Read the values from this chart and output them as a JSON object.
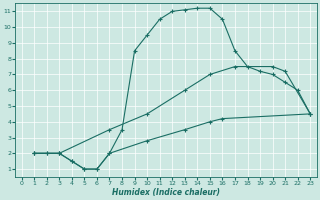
{
  "xlabel": "Humidex (Indice chaleur)",
  "bg_color": "#cde8e2",
  "line_color": "#1a6e64",
  "grid_color": "#b0d8d0",
  "xlim": [
    -0.5,
    23.5
  ],
  "ylim": [
    0.5,
    11.5
  ],
  "xticks": [
    0,
    1,
    2,
    3,
    4,
    5,
    6,
    7,
    8,
    9,
    10,
    11,
    12,
    13,
    14,
    15,
    16,
    17,
    18,
    19,
    20,
    21,
    22,
    23
  ],
  "yticks": [
    1,
    2,
    3,
    4,
    5,
    6,
    7,
    8,
    9,
    10,
    11
  ],
  "curve1_x": [
    1,
    2,
    3,
    4,
    5,
    6,
    7,
    8,
    9,
    10,
    11,
    12,
    13,
    14,
    15,
    16,
    17,
    18,
    19,
    20,
    21,
    22,
    23
  ],
  "curve1_y": [
    2,
    2,
    2,
    1.5,
    1.0,
    1.0,
    2.0,
    3.5,
    8.5,
    9.5,
    10.5,
    11.0,
    11.1,
    11.2,
    11.2,
    10.5,
    8.5,
    7.5,
    7.2,
    7.0,
    6.5,
    6.0,
    4.5
  ],
  "curve2_x": [
    1,
    3,
    7,
    10,
    13,
    15,
    17,
    20,
    21,
    23
  ],
  "curve2_y": [
    2,
    2,
    3.5,
    4.5,
    6.0,
    7.0,
    7.5,
    7.5,
    7.2,
    4.5
  ],
  "curve3_x": [
    1,
    2,
    3,
    4,
    5,
    6,
    7,
    10,
    13,
    15,
    16,
    23
  ],
  "curve3_y": [
    2,
    2,
    2,
    1.5,
    1.0,
    1.0,
    2.0,
    2.8,
    3.5,
    4.0,
    4.2,
    4.5
  ]
}
